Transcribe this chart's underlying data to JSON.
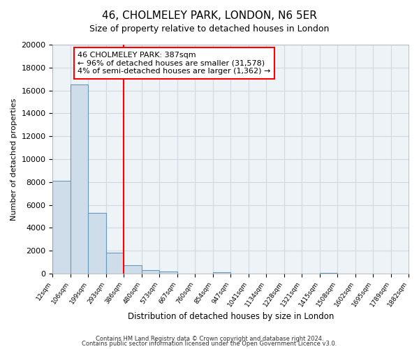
{
  "title": "46, CHOLMELEY PARK, LONDON, N6 5ER",
  "subtitle": "Size of property relative to detached houses in London",
  "xlabel": "Distribution of detached houses by size in London",
  "ylabel": "Number of detached properties",
  "bar_color": "#cfdce9",
  "bar_edge_color": "#6699bb",
  "bin_edges": [
    12,
    106,
    199,
    293,
    386,
    480,
    573,
    667,
    760,
    854,
    947,
    1041,
    1134,
    1228,
    1321,
    1415,
    1508,
    1602,
    1695,
    1789,
    1882
  ],
  "bin_labels": [
    "12sqm",
    "106sqm",
    "199sqm",
    "293sqm",
    "386sqm",
    "480sqm",
    "573sqm",
    "667sqm",
    "760sqm",
    "854sqm",
    "947sqm",
    "1041sqm",
    "1134sqm",
    "1228sqm",
    "1321sqm",
    "1415sqm",
    "1508sqm",
    "1602sqm",
    "1695sqm",
    "1789sqm",
    "1882sqm"
  ],
  "bar_heights": [
    8100,
    16500,
    5300,
    1850,
    750,
    300,
    200,
    0,
    0,
    100,
    0,
    0,
    0,
    0,
    0,
    50,
    0,
    0,
    0,
    0
  ],
  "red_line_x": 386,
  "annotation_title": "46 CHOLMELEY PARK: 387sqm",
  "annotation_line1": "← 96% of detached houses are smaller (31,578)",
  "annotation_line2": "4% of semi-detached houses are larger (1,362) →",
  "ylim": [
    0,
    20000
  ],
  "yticks": [
    0,
    2000,
    4000,
    6000,
    8000,
    10000,
    12000,
    14000,
    16000,
    18000,
    20000
  ],
  "footer1": "Contains HM Land Registry data © Crown copyright and database right 2024.",
  "footer2": "Contains public sector information licensed under the Open Government Licence v3.0.",
  "background_color": "#ffffff",
  "plot_bg_color": "#eef3f8",
  "grid_color": "#d0d8e4"
}
